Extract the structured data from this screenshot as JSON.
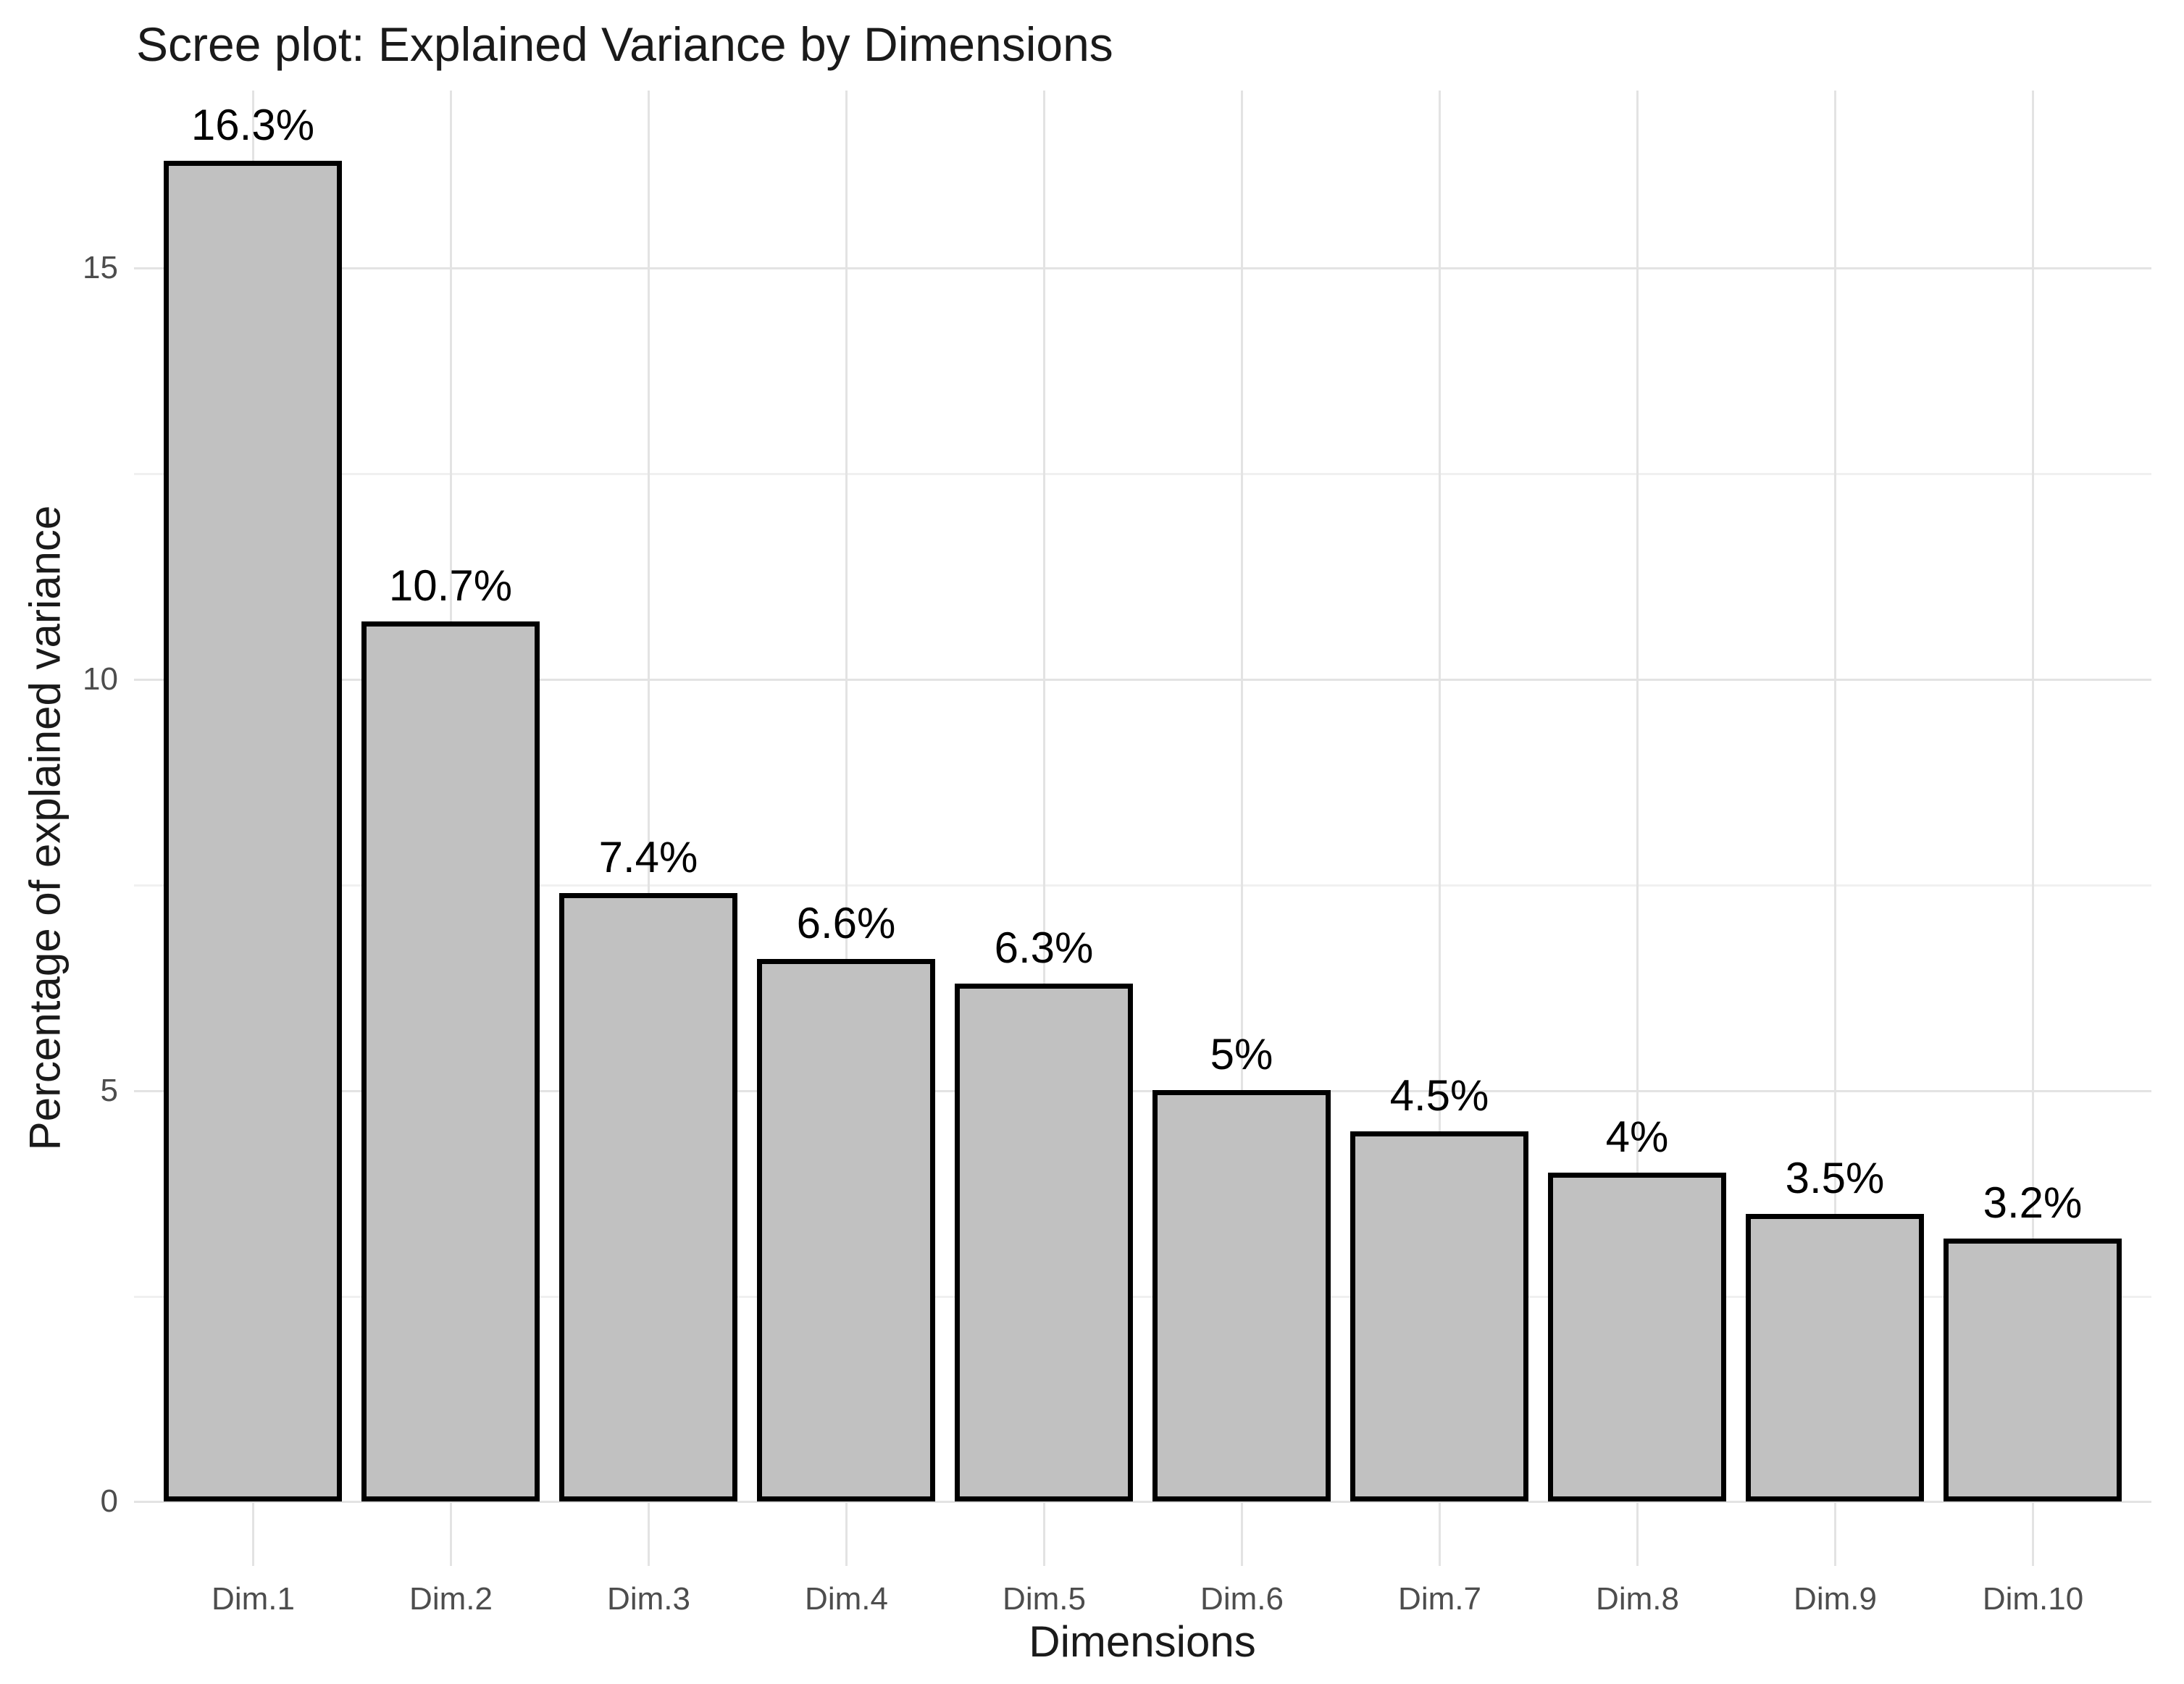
{
  "chart_data": {
    "type": "bar",
    "title": "Scree plot: Explained Variance by Dimensions",
    "xlabel": "Dimensions",
    "ylabel": "Percentage of explained variance",
    "categories": [
      "Dim.1",
      "Dim.2",
      "Dim.3",
      "Dim.4",
      "Dim.5",
      "Dim.6",
      "Dim.7",
      "Dim.8",
      "Dim.9",
      "Dim.10"
    ],
    "values": [
      16.3,
      10.7,
      7.4,
      6.6,
      6.3,
      5,
      4.5,
      4,
      3.5,
      3.2
    ],
    "bar_labels": [
      "16.3%",
      "10.7%",
      "7.4%",
      "6.6%",
      "6.3%",
      "5%",
      "4.5%",
      "4%",
      "3.5%",
      "3.2%"
    ],
    "yticks": [
      0,
      5,
      10,
      15
    ],
    "ytick_labels": [
      "0",
      "5",
      "10",
      "15"
    ],
    "minor_yticks": [
      2.5,
      7.5,
      12.5
    ],
    "ylim": [
      0,
      17.16
    ],
    "grid": "on",
    "legend": "none",
    "colors": {
      "bar_fill": "#C1C1C1",
      "bar_stroke": "#000000",
      "grid_major": "#E3E3E3",
      "grid_minor": "#F0F0F0",
      "tick_text": "#4D4D4D",
      "title_text": "#1A1A1A",
      "background": "#FFFFFF"
    }
  }
}
